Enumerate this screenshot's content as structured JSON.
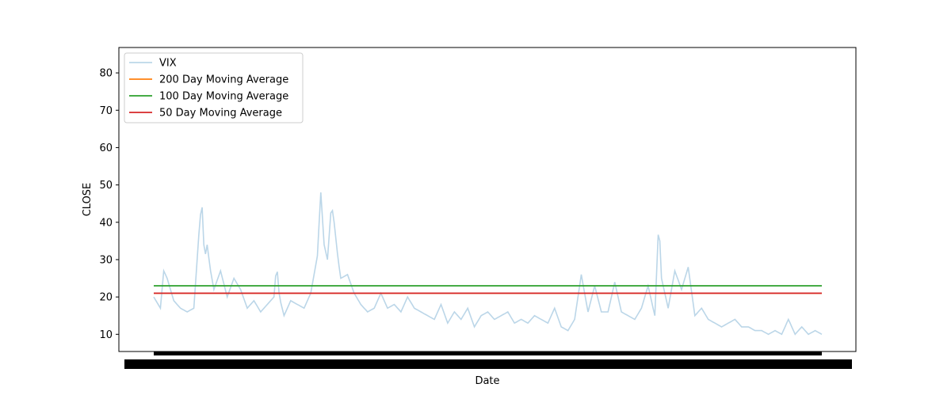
{
  "chart_data": {
    "type": "line",
    "title": "",
    "xlabel": "Date",
    "ylabel": "CLOSE",
    "ylim": [
      5.4,
      86.8
    ],
    "yticks": [
      10,
      20,
      30,
      40,
      50,
      60,
      70,
      80
    ],
    "x_tick_labels_note": "dense overlapping date labels",
    "x": {
      "start": 0,
      "end": 100,
      "n": 401
    },
    "grid": false,
    "legend_placement": "upper-left",
    "series": [
      {
        "name": "VIX",
        "color": "#1f77b4",
        "alpha": 0.3,
        "anchors": [
          [
            0,
            20
          ],
          [
            1,
            17
          ],
          [
            1.5,
            27
          ],
          [
            2,
            25
          ],
          [
            3,
            19
          ],
          [
            4,
            17
          ],
          [
            5,
            16
          ],
          [
            6,
            17
          ],
          [
            6.8,
            38
          ],
          [
            7.2,
            46
          ],
          [
            7.6,
            30
          ],
          [
            8,
            34
          ],
          [
            8.5,
            27
          ],
          [
            9,
            22
          ],
          [
            10,
            27
          ],
          [
            11,
            20
          ],
          [
            12,
            25
          ],
          [
            13,
            22
          ],
          [
            14,
            17
          ],
          [
            15,
            19
          ],
          [
            16,
            16
          ],
          [
            17,
            18
          ],
          [
            18,
            20
          ],
          [
            18.4,
            29
          ],
          [
            18.8,
            20
          ],
          [
            19.5,
            15
          ],
          [
            20.5,
            19
          ],
          [
            21.5,
            18
          ],
          [
            22.5,
            17
          ],
          [
            23.5,
            21
          ],
          [
            24,
            26
          ],
          [
            24.5,
            31
          ],
          [
            25,
            48
          ],
          [
            25.5,
            34
          ],
          [
            26,
            30
          ],
          [
            26.6,
            45
          ],
          [
            27,
            40
          ],
          [
            27.6,
            30
          ],
          [
            28,
            25
          ],
          [
            29,
            26
          ],
          [
            30,
            21
          ],
          [
            31,
            18
          ],
          [
            32,
            16
          ],
          [
            33,
            17
          ],
          [
            34,
            21
          ],
          [
            35,
            17
          ],
          [
            36,
            18
          ],
          [
            37,
            16
          ],
          [
            38,
            20
          ],
          [
            39,
            17
          ],
          [
            40,
            16
          ],
          [
            41,
            15
          ],
          [
            42,
            14
          ],
          [
            43,
            18
          ],
          [
            44,
            13
          ],
          [
            45,
            16
          ],
          [
            46,
            14
          ],
          [
            47,
            17
          ],
          [
            48,
            12
          ],
          [
            49,
            15
          ],
          [
            50,
            16
          ],
          [
            51,
            14
          ],
          [
            52,
            15
          ],
          [
            53,
            16
          ],
          [
            54,
            13
          ],
          [
            55,
            14
          ],
          [
            56,
            13
          ],
          [
            57,
            15
          ],
          [
            58,
            14
          ],
          [
            59,
            13
          ],
          [
            60,
            17
          ],
          [
            61,
            12
          ],
          [
            62,
            11
          ],
          [
            63,
            14
          ],
          [
            64,
            26
          ],
          [
            65,
            16
          ],
          [
            66,
            23
          ],
          [
            67,
            16
          ],
          [
            68,
            16
          ],
          [
            69,
            24
          ],
          [
            70,
            16
          ],
          [
            71,
            15
          ],
          [
            72,
            14
          ],
          [
            73,
            17
          ],
          [
            74,
            23
          ],
          [
            75,
            15
          ],
          [
            75.6,
            41
          ],
          [
            76,
            25
          ],
          [
            77,
            17
          ],
          [
            78,
            27
          ],
          [
            79,
            22
          ],
          [
            80,
            28
          ],
          [
            81,
            15
          ],
          [
            82,
            17
          ],
          [
            83,
            14
          ],
          [
            84,
            13
          ],
          [
            85,
            12
          ],
          [
            86,
            13
          ],
          [
            87,
            14
          ],
          [
            88,
            12
          ],
          [
            89,
            12
          ],
          [
            90,
            11
          ],
          [
            91,
            11
          ],
          [
            92,
            10
          ],
          [
            93,
            11
          ],
          [
            94,
            10
          ],
          [
            95,
            14
          ],
          [
            96,
            10
          ],
          [
            97,
            12
          ],
          [
            98,
            10
          ],
          [
            99,
            11
          ],
          [
            100,
            10
          ]
        ]
      },
      {
        "name": "200 Day Moving Average",
        "color": "#ff7f0e",
        "anchors": [
          [
            0,
            21
          ],
          [
            100,
            21
          ]
        ]
      },
      {
        "name": "100 Day Moving Average",
        "color": "#2ca02c",
        "anchors": [
          [
            0,
            23
          ],
          [
            100,
            23
          ]
        ]
      },
      {
        "name": "50 Day Moving Average",
        "color": "#d62728",
        "anchors": [
          [
            0,
            21
          ],
          [
            100,
            21
          ]
        ]
      }
    ]
  }
}
